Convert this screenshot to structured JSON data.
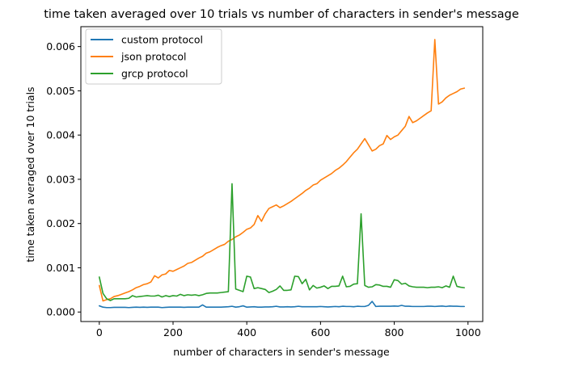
{
  "chart_data": {
    "type": "line",
    "title": "time taken averaged over 10 trials vs number of characters in sender's message",
    "xlabel": "number of characters in sender's message",
    "ylabel": "time taken averaged over 10 trials",
    "xlim": [
      -50,
      1040
    ],
    "ylim": [
      -0.000215,
      0.00645
    ],
    "xticks": [
      0,
      200,
      400,
      600,
      800,
      1000
    ],
    "yticks": [
      0,
      0.001,
      0.002,
      0.003,
      0.004,
      0.005,
      0.006
    ],
    "xtick_labels": [
      "0",
      "200",
      "400",
      "600",
      "800",
      "1000"
    ],
    "ytick_labels": [
      "0.000",
      "0.001",
      "0.002",
      "0.003",
      "0.004",
      "0.005",
      "0.006"
    ],
    "grid": false,
    "legend": "top-left",
    "x": [
      0,
      10,
      20,
      30,
      40,
      50,
      60,
      70,
      80,
      90,
      100,
      110,
      120,
      130,
      140,
      150,
      160,
      170,
      180,
      190,
      200,
      210,
      220,
      230,
      240,
      250,
      260,
      270,
      280,
      290,
      300,
      310,
      320,
      330,
      340,
      350,
      360,
      370,
      380,
      390,
      400,
      410,
      420,
      430,
      440,
      450,
      460,
      470,
      480,
      490,
      500,
      510,
      520,
      530,
      540,
      550,
      560,
      570,
      580,
      590,
      600,
      610,
      620,
      630,
      640,
      650,
      660,
      670,
      680,
      690,
      700,
      710,
      720,
      730,
      740,
      750,
      760,
      770,
      780,
      790,
      800,
      810,
      820,
      830,
      840,
      850,
      860,
      870,
      880,
      890,
      900,
      910,
      920,
      930,
      940,
      950,
      960,
      970,
      980,
      990
    ],
    "series": [
      {
        "name": "custom protocol",
        "color": "#1f77b4",
        "values": [
          0.00014,
          0.00011,
          0.0001,
          0.0001,
          0.000105,
          0.000105,
          0.000105,
          0.000105,
          0.0001,
          0.000105,
          0.00011,
          0.000105,
          0.00011,
          0.000105,
          0.00011,
          0.00011,
          0.00011,
          0.0001,
          0.000105,
          0.00011,
          0.00011,
          0.00011,
          0.00011,
          0.000105,
          0.00011,
          0.00011,
          0.00011,
          0.00011,
          0.00016,
          0.00011,
          0.00011,
          0.00011,
          0.00011,
          0.00011,
          0.000115,
          0.00012,
          0.00013,
          0.00011,
          0.00012,
          0.00014,
          0.00011,
          0.000115,
          0.00012,
          0.00011,
          0.00011,
          0.000115,
          0.000115,
          0.00012,
          0.00013,
          0.000115,
          0.000115,
          0.00012,
          0.000115,
          0.00012,
          0.00013,
          0.00012,
          0.00012,
          0.00012,
          0.00012,
          0.00012,
          0.000125,
          0.00012,
          0.000115,
          0.00012,
          0.000125,
          0.00012,
          0.00013,
          0.000125,
          0.000125,
          0.00012,
          0.00013,
          0.000125,
          0.000125,
          0.00015,
          0.00024,
          0.000125,
          0.00013,
          0.00013,
          0.00013,
          0.00013,
          0.000135,
          0.00013,
          0.00015,
          0.00013,
          0.00013,
          0.000125,
          0.000125,
          0.000125,
          0.000125,
          0.00013,
          0.00013,
          0.000125,
          0.00013,
          0.000135,
          0.000125,
          0.000135,
          0.00013,
          0.00013,
          0.000125,
          0.000125
        ]
      },
      {
        "name": "json protocol",
        "color": "#ff7f0e",
        "values": [
          0.0006,
          0.00025,
          0.00028,
          0.0003,
          0.00035,
          0.00037,
          0.0004,
          0.00043,
          0.00046,
          0.0005,
          0.00055,
          0.00058,
          0.00062,
          0.00064,
          0.00068,
          0.00082,
          0.00077,
          0.00084,
          0.00086,
          0.00094,
          0.00092,
          0.00096,
          0.001,
          0.00104,
          0.0011,
          0.00112,
          0.00117,
          0.00122,
          0.00126,
          0.00133,
          0.00136,
          0.00141,
          0.00146,
          0.0015,
          0.00153,
          0.0016,
          0.00164,
          0.0017,
          0.00174,
          0.0018,
          0.00187,
          0.0019,
          0.00198,
          0.00218,
          0.00205,
          0.00222,
          0.00234,
          0.00238,
          0.00242,
          0.00236,
          0.0024,
          0.00245,
          0.0025,
          0.00256,
          0.00262,
          0.00268,
          0.00275,
          0.0028,
          0.00287,
          0.0029,
          0.00298,
          0.00303,
          0.00308,
          0.00313,
          0.0032,
          0.00325,
          0.00332,
          0.0034,
          0.0035,
          0.0036,
          0.00368,
          0.0038,
          0.00392,
          0.00378,
          0.00364,
          0.00368,
          0.00376,
          0.0038,
          0.00399,
          0.0039,
          0.00396,
          0.004,
          0.0041,
          0.0042,
          0.00442,
          0.00428,
          0.00432,
          0.00438,
          0.00444,
          0.0045,
          0.00455,
          0.00616,
          0.0047,
          0.00475,
          0.00484,
          0.0049,
          0.00494,
          0.00498,
          0.00504,
          0.00506
        ]
      },
      {
        "name": "grcp protocol",
        "color": "#2ca02c",
        "values": [
          0.00079,
          0.00042,
          0.0003,
          0.00026,
          0.0003,
          0.0003,
          0.0003,
          0.0003,
          0.00031,
          0.00037,
          0.00034,
          0.00035,
          0.00036,
          0.00037,
          0.00036,
          0.00036,
          0.00038,
          0.00034,
          0.00037,
          0.00035,
          0.00037,
          0.00036,
          0.0004,
          0.00037,
          0.00039,
          0.00038,
          0.00039,
          0.00037,
          0.00039,
          0.00042,
          0.00043,
          0.00043,
          0.00043,
          0.00044,
          0.00045,
          0.00046,
          0.0029,
          0.00052,
          0.00049,
          0.00046,
          0.00081,
          0.00079,
          0.00053,
          0.00055,
          0.00053,
          0.00051,
          0.00044,
          0.00047,
          0.00051,
          0.00059,
          0.00049,
          0.00049,
          0.0005,
          0.00081,
          0.0008,
          0.00064,
          0.00074,
          0.0005,
          0.0006,
          0.00054,
          0.00056,
          0.00059,
          0.00053,
          0.00058,
          0.00058,
          0.00059,
          0.00081,
          0.00057,
          0.00058,
          0.00063,
          0.00064,
          0.00222,
          0.0006,
          0.00056,
          0.00057,
          0.00062,
          0.00061,
          0.00058,
          0.00058,
          0.00056,
          0.00073,
          0.00071,
          0.00063,
          0.00065,
          0.00059,
          0.00057,
          0.00056,
          0.00056,
          0.00056,
          0.00055,
          0.00056,
          0.00056,
          0.00057,
          0.00055,
          0.00059,
          0.00056,
          0.00081,
          0.00058,
          0.00056,
          0.00055
        ]
      }
    ]
  }
}
